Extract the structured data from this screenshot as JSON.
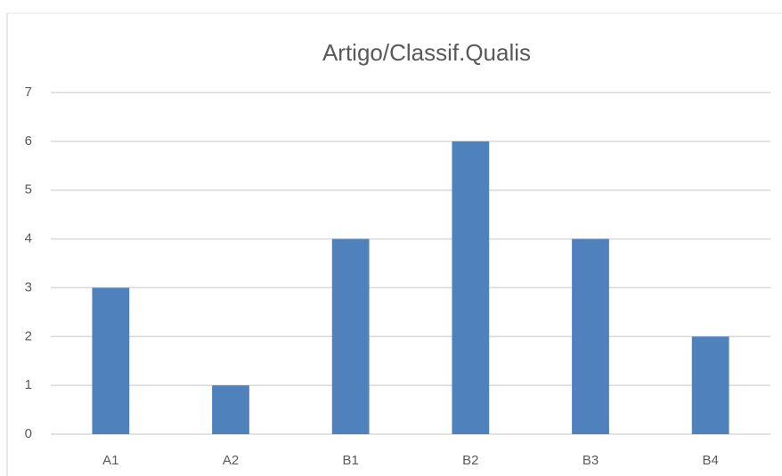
{
  "chart_data": {
    "type": "bar",
    "title": "Artigo/Classif.Qualis",
    "categories": [
      "A1",
      "A2",
      "B1",
      "B2",
      "B3",
      "B4"
    ],
    "values": [
      3,
      1,
      4,
      6,
      4,
      2
    ],
    "color": "#4f81bd",
    "ylim": [
      0,
      7
    ],
    "yticks": [
      0,
      1,
      2,
      3,
      4,
      5,
      6,
      7
    ],
    "grid": true
  }
}
